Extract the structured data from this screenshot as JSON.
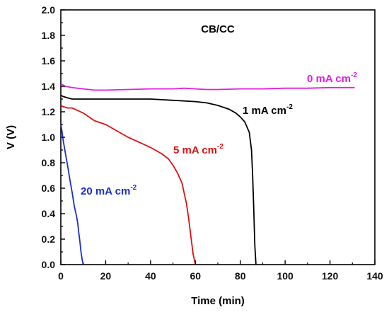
{
  "chart_data": {
    "type": "line",
    "title": "CB/CC",
    "xlabel": "Time (min)",
    "ylabel": "V (V)",
    "xlim": [
      0,
      140
    ],
    "ylim": [
      0.0,
      2.0
    ],
    "xticks": [
      "0",
      "20",
      "40",
      "60",
      "80",
      "100",
      "120",
      "140"
    ],
    "yticks": [
      "0.0",
      "0.2",
      "0.4",
      "0.6",
      "0.8",
      "1.0",
      "1.2",
      "1.4",
      "1.6",
      "1.8",
      "2.0"
    ],
    "grid": false,
    "series": [
      {
        "name": "0 mA cm",
        "name_sup": "-2",
        "color": "#e020e0",
        "x": [
          0,
          2,
          5,
          10,
          15,
          20,
          30,
          40,
          50,
          55,
          60,
          65,
          70,
          80,
          90,
          100,
          110,
          120,
          131
        ],
        "y": [
          1.42,
          1.4,
          1.39,
          1.38,
          1.37,
          1.37,
          1.375,
          1.38,
          1.38,
          1.385,
          1.38,
          1.375,
          1.375,
          1.38,
          1.38,
          1.385,
          1.385,
          1.39,
          1.39
        ]
      },
      {
        "name": "1 mA cm",
        "name_sup": "-2",
        "color": "#000000",
        "x": [
          0,
          1,
          3,
          5,
          10,
          20,
          30,
          40,
          50,
          60,
          65,
          70,
          75,
          78,
          80,
          82,
          84,
          85,
          85.5,
          86,
          86.5,
          87
        ],
        "y": [
          1.33,
          1.32,
          1.31,
          1.3,
          1.3,
          1.3,
          1.3,
          1.3,
          1.29,
          1.28,
          1.27,
          1.25,
          1.22,
          1.19,
          1.16,
          1.12,
          1.04,
          0.9,
          0.7,
          0.45,
          0.15,
          0.0
        ]
      },
      {
        "name": "5 mA cm",
        "name_sup": "-2",
        "color": "#e01010",
        "x": [
          0,
          1,
          3,
          5,
          10,
          15,
          20,
          25,
          30,
          35,
          40,
          45,
          48,
          50,
          52,
          54,
          56,
          57,
          58,
          59,
          60
        ],
        "y": [
          1.25,
          1.24,
          1.23,
          1.23,
          1.19,
          1.13,
          1.1,
          1.05,
          1.0,
          0.96,
          0.92,
          0.87,
          0.83,
          0.78,
          0.72,
          0.64,
          0.48,
          0.36,
          0.22,
          0.08,
          0.0
        ]
      },
      {
        "name": "20 mA cm",
        "name_sup": "-2",
        "color": "#1a2ec8",
        "x": [
          0,
          0.5,
          1,
          2,
          3,
          4,
          5,
          6,
          6.5,
          7,
          7.5,
          8,
          8.5,
          9,
          9.5,
          10
        ],
        "y": [
          1.1,
          1.05,
          0.98,
          0.88,
          0.78,
          0.67,
          0.57,
          0.46,
          0.42,
          0.38,
          0.33,
          0.25,
          0.18,
          0.1,
          0.04,
          0.0
        ]
      }
    ]
  }
}
